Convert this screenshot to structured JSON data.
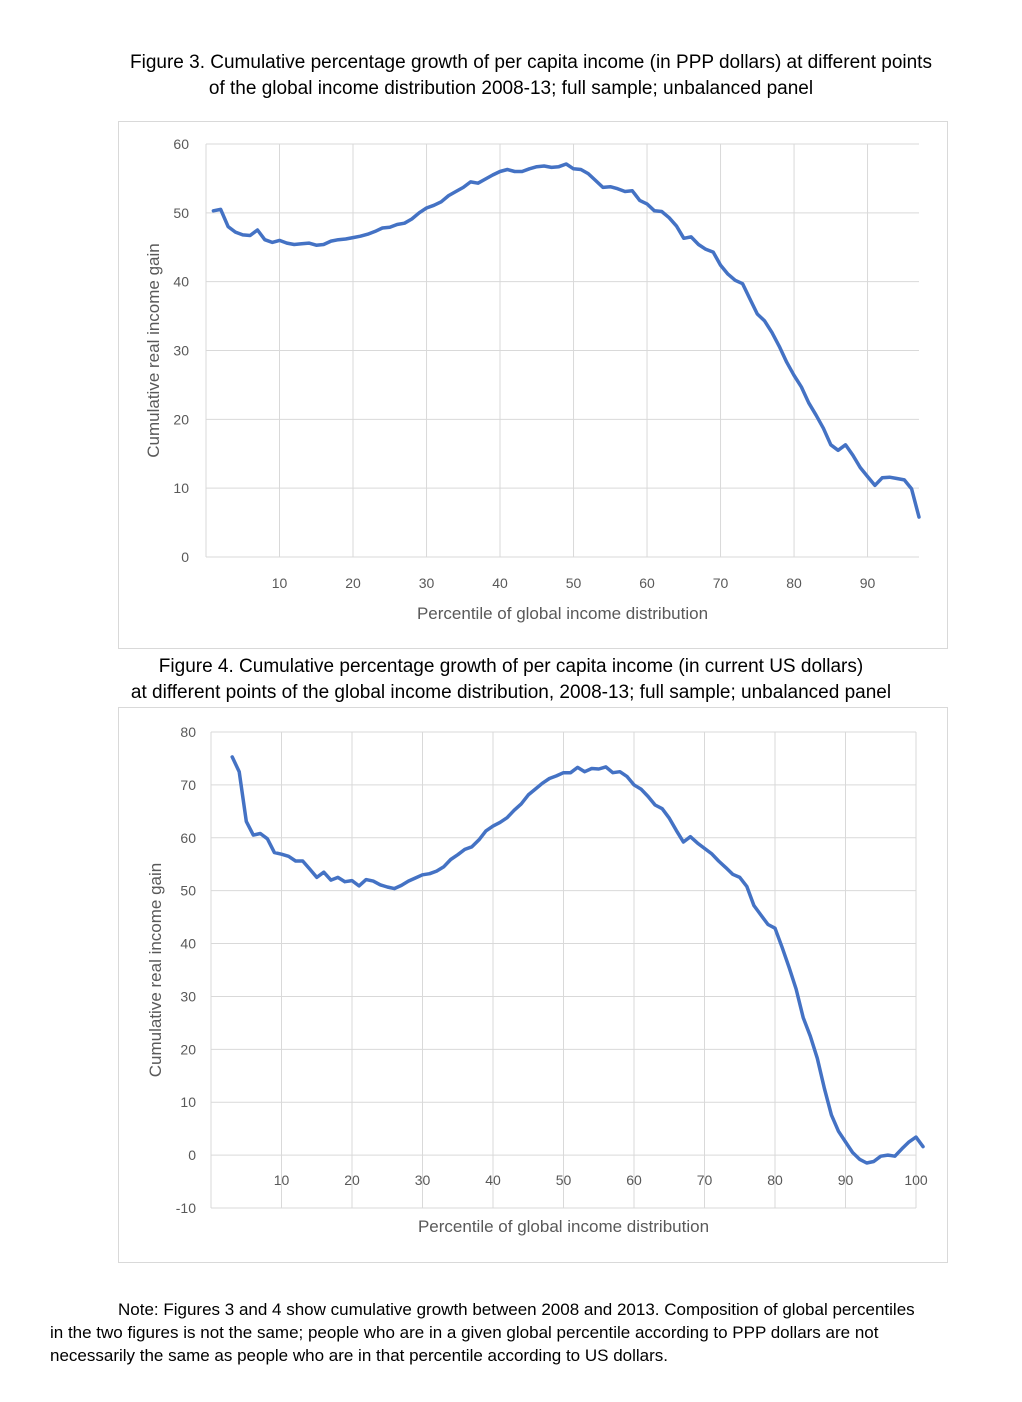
{
  "figure3": {
    "title_line1": "Figure 3.  Cumulative percentage growth of per capita income (in PPP dollars) at different points",
    "title_line2": "of the global income distribution 2008-13; full sample; unbalanced panel"
  },
  "figure4": {
    "title_line1": "Figure 4.  Cumulative percentage growth of per capita income (in current US  dollars)",
    "title_line2": "at different points of the global income distribution, 2008-13; full sample; unbalanced panel"
  },
  "note": {
    "line1": "Note: Figures 3 and 4 show cumulative growth between 2008 and 2013. Composition of global percentiles",
    "line2": "in the two figures is not the same; people who are in a given global percentile according to PPP dollars are not",
    "line3": "necessarily the same as people who are in that percentile according to US dollars."
  },
  "colors": {
    "series": "#4472c4",
    "grid": "#d9d9d9",
    "axis_text": "#595959"
  },
  "chart_data": [
    {
      "type": "line",
      "xlabel": "Percentile of global income distribution",
      "ylabel": "Cumulative real income gain",
      "ylim": [
        0,
        60
      ],
      "xlim": [
        0,
        97
      ],
      "yticks": [
        0,
        10,
        20,
        30,
        40,
        50,
        60
      ],
      "xticks": [
        10,
        20,
        30,
        40,
        50,
        60,
        70,
        80,
        90
      ],
      "grid": true,
      "series": [
        {
          "x": [
            1,
            2,
            3,
            4,
            5,
            6,
            7,
            8,
            9,
            10,
            11,
            12,
            13,
            14,
            15,
            16,
            17,
            18,
            19,
            20,
            21,
            22,
            23,
            24,
            25,
            26,
            27,
            28,
            29,
            30,
            31,
            32,
            33,
            34,
            35,
            36,
            37,
            38,
            39,
            40,
            41,
            42,
            43,
            44,
            45,
            46,
            47,
            48,
            49,
            50,
            51,
            52,
            53,
            54,
            55,
            56,
            57,
            58,
            59,
            60,
            61,
            62,
            63,
            64,
            65,
            66,
            67,
            68,
            69,
            70,
            71,
            72,
            73,
            74,
            75,
            76,
            77,
            78,
            79,
            80,
            81,
            82,
            83,
            84,
            85,
            86,
            87,
            88,
            89,
            90,
            91,
            92,
            93,
            94,
            95,
            96,
            97
          ],
          "values": [
            50.3,
            50.5,
            48.0,
            47.2,
            46.8,
            46.7,
            47.5,
            46.1,
            45.7,
            46.0,
            45.6,
            45.4,
            45.5,
            45.6,
            45.3,
            45.4,
            45.9,
            46.1,
            46.2,
            46.4,
            46.6,
            46.9,
            47.3,
            47.8,
            47.9,
            48.3,
            48.5,
            49.1,
            50.0,
            50.7,
            51.1,
            51.6,
            52.5,
            53.1,
            53.7,
            54.5,
            54.3,
            54.9,
            55.5,
            56.0,
            56.3,
            56.0,
            56.0,
            56.4,
            56.7,
            56.8,
            56.6,
            56.7,
            57.1,
            56.4,
            56.3,
            55.7,
            54.7,
            53.7,
            53.8,
            53.5,
            53.1,
            53.2,
            51.8,
            51.3,
            50.3,
            50.2,
            49.3,
            48.1,
            46.3,
            46.5,
            45.4,
            44.7,
            44.3,
            42.4,
            41.1,
            40.2,
            39.7,
            37.5,
            35.3,
            34.3,
            32.6,
            30.6,
            28.3,
            26.4,
            24.7,
            22.4,
            20.6,
            18.7,
            16.3,
            15.5,
            16.3,
            14.8,
            13.0,
            11.7,
            10.4,
            11.5,
            11.6,
            11.4,
            11.2,
            9.9,
            5.8
          ]
        }
      ]
    },
    {
      "type": "line",
      "xlabel": "Percentile of global income distribution",
      "ylabel": "Cumulative real income gain",
      "ylim": [
        -10,
        80
      ],
      "xlim": [
        0,
        100
      ],
      "yticks": [
        -10,
        0,
        10,
        20,
        30,
        40,
        50,
        60,
        70,
        80
      ],
      "xticks": [
        10,
        20,
        30,
        40,
        50,
        60,
        70,
        80,
        90,
        100
      ],
      "grid": true,
      "series": [
        {
          "x": [
            3,
            4,
            5,
            6,
            7,
            8,
            9,
            10,
            11,
            12,
            13,
            14,
            15,
            16,
            17,
            18,
            19,
            20,
            21,
            22,
            23,
            24,
            25,
            26,
            27,
            28,
            29,
            30,
            31,
            32,
            33,
            34,
            35,
            36,
            37,
            38,
            39,
            40,
            41,
            42,
            43,
            44,
            45,
            46,
            47,
            48,
            49,
            50,
            51,
            52,
            53,
            54,
            55,
            56,
            57,
            58,
            59,
            60,
            61,
            62,
            63,
            64,
            65,
            66,
            67,
            68,
            69,
            70,
            71,
            72,
            73,
            74,
            75,
            76,
            77,
            78,
            79,
            80,
            81,
            82,
            83,
            84,
            85,
            86,
            87,
            88,
            89,
            90,
            91,
            92,
            93,
            94,
            95,
            96,
            97,
            98,
            99,
            100,
            101
          ],
          "values": [
            75.3,
            72.5,
            63.1,
            60.5,
            60.8,
            59.8,
            57.2,
            56.9,
            56.5,
            55.6,
            55.6,
            54.1,
            52.5,
            53.5,
            52.0,
            52.5,
            51.7,
            51.9,
            50.9,
            52.1,
            51.8,
            51.1,
            50.7,
            50.4,
            51.0,
            51.8,
            52.4,
            53.0,
            53.2,
            53.7,
            54.5,
            55.9,
            56.8,
            57.8,
            58.3,
            59.6,
            61.3,
            62.2,
            62.9,
            63.8,
            65.2,
            66.4,
            68.1,
            69.2,
            70.3,
            71.2,
            71.7,
            72.3,
            72.3,
            73.3,
            72.5,
            73.1,
            73.0,
            73.4,
            72.3,
            72.5,
            71.6,
            70.0,
            69.2,
            67.8,
            66.2,
            65.5,
            63.7,
            61.4,
            59.2,
            60.2,
            59.0,
            58.0,
            57.0,
            55.6,
            54.4,
            53.1,
            52.5,
            50.8,
            47.2,
            45.4,
            43.6,
            42.9,
            39.3,
            35.5,
            31.4,
            26.0,
            22.5,
            18.3,
            12.6,
            7.6,
            4.5,
            2.5,
            0.5,
            -0.8,
            -1.5,
            -1.2,
            -0.2,
            0.0,
            -0.2,
            1.2,
            2.5,
            3.4,
            1.6
          ]
        }
      ]
    }
  ]
}
